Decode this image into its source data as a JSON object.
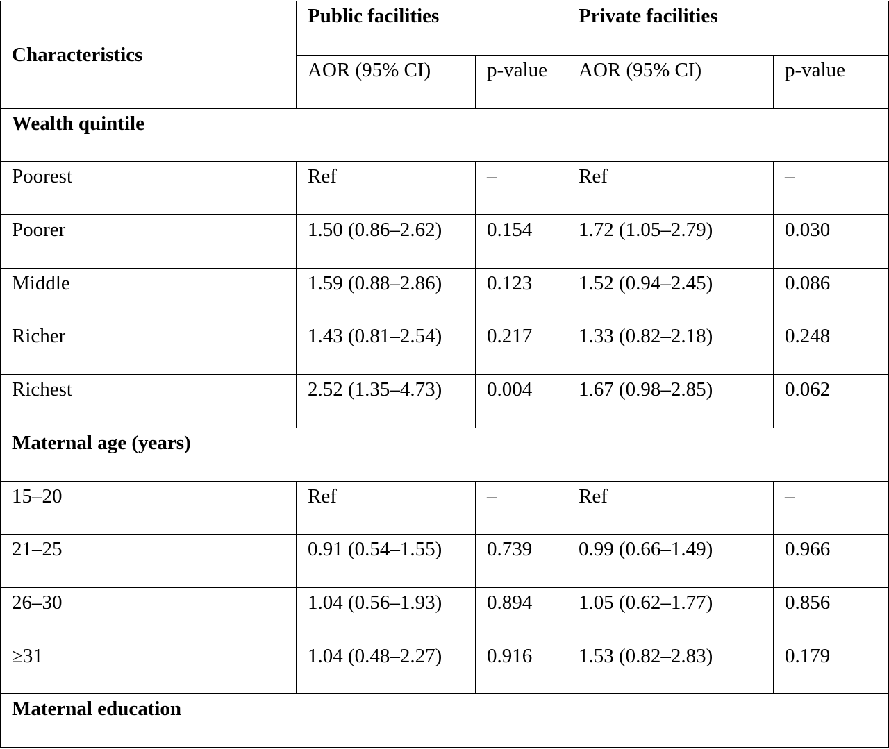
{
  "table": {
    "header": {
      "characteristics": "Characteristics",
      "groups": [
        "Public facilities",
        "Private facilities"
      ],
      "subheaders": [
        "AOR (95% CI)",
        "p-value",
        "AOR (95% CI)",
        "p-value"
      ]
    },
    "rows": [
      [
        "Wealth quintile"
      ],
      [
        "Poorest",
        "Ref",
        "–",
        "Ref",
        "–"
      ],
      [
        "Poorer",
        "1.50 (0.86–2.62)",
        "0.154",
        "1.72 (1.05–2.79)",
        "0.030"
      ],
      [
        "Middle",
        "1.59 (0.88–2.86)",
        "0.123",
        "1.52 (0.94–2.45)",
        "0.086"
      ],
      [
        "Richer",
        "1.43 (0.81–2.54)",
        "0.217",
        "1.33 (0.82–2.18)",
        "0.248"
      ],
      [
        "Richest",
        "2.52 (1.35–4.73)",
        "0.004",
        "1.67 (0.98–2.85)",
        "0.062"
      ],
      [
        "Maternal age (years)"
      ],
      [
        "15–20",
        "Ref",
        "–",
        "Ref",
        "–"
      ],
      [
        "21–25",
        "0.91 (0.54–1.55)",
        "0.739",
        "0.99 (0.66–1.49)",
        "0.966"
      ],
      [
        "26–30",
        "1.04 (0.56–1.93)",
        "0.894",
        "1.05 (0.62–1.77)",
        "0.856"
      ],
      [
        "≥31",
        "1.04 (0.48–2.27)",
        "0.916",
        "1.53 (0.82–2.83)",
        "0.179"
      ],
      [
        "Maternal education"
      ]
    ]
  }
}
